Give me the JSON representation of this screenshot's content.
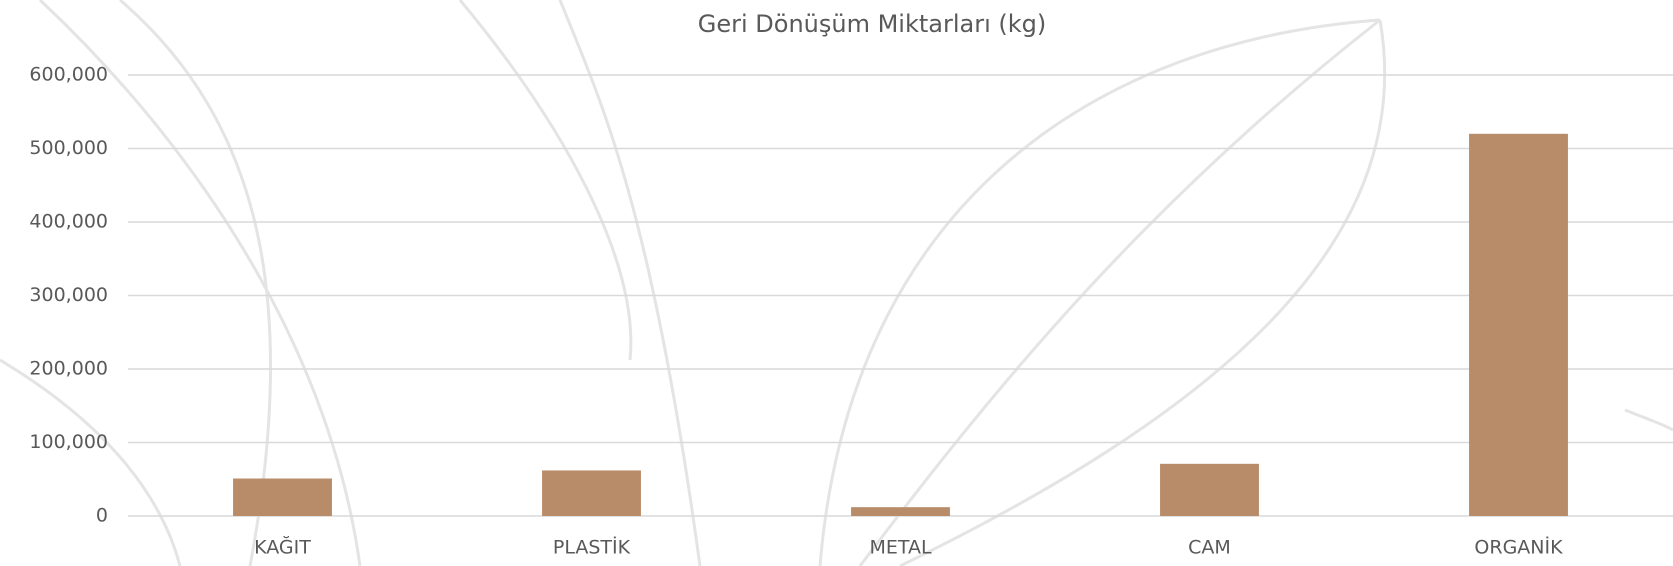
{
  "chart_data": {
    "type": "bar",
    "title": "Geri Dönüşüm Miktarları (kg)",
    "categories": [
      "KAĞIT",
      "PLASTİK",
      "METAL",
      "CAM",
      "ORGANİK"
    ],
    "values": [
      51000,
      62000,
      12000,
      71000,
      520000
    ],
    "color": "#b98c69",
    "ylim": [
      0,
      600000
    ],
    "yticks": [
      0,
      {
        "value": 100000,
        "label": "100,000"
      },
      {
        "value": 200000,
        "label": "200,000"
      },
      {
        "value": 300000,
        "label": "300,000"
      },
      {
        "value": 400000,
        "label": "400,000"
      },
      {
        "value": 500000,
        "label": "500,000"
      },
      {
        "value": 600000,
        "label": "600,000"
      }
    ],
    "grid": true
  }
}
